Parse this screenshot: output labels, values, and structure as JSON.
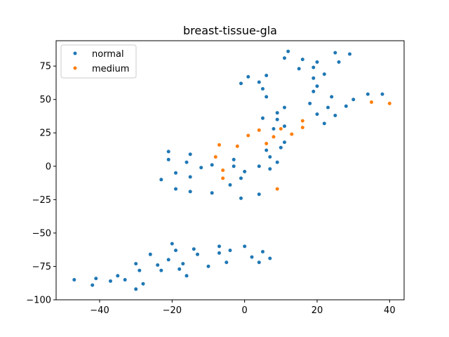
{
  "chart_data": {
    "type": "scatter",
    "title": "breast-tissue-gla",
    "xlabel": "",
    "ylabel": "",
    "xlim": [
      -52,
      44
    ],
    "ylim": [
      -100,
      94
    ],
    "xticks": [
      -40,
      -20,
      0,
      20,
      40
    ],
    "yticks": [
      -100,
      -75,
      -50,
      -25,
      0,
      25,
      50,
      75
    ],
    "grid": false,
    "legend_position": "upper-left",
    "series": [
      {
        "name": "normal",
        "color": "#1f77b4",
        "points": [
          [
            11,
            81
          ],
          [
            12,
            86
          ],
          [
            16,
            80
          ],
          [
            20,
            78
          ],
          [
            15,
            73
          ],
          [
            19,
            74
          ],
          [
            22,
            69
          ],
          [
            26,
            78
          ],
          [
            25,
            85
          ],
          [
            29,
            84
          ],
          [
            19,
            66
          ],
          [
            20,
            60
          ],
          [
            19,
            56
          ],
          [
            24,
            52
          ],
          [
            23,
            44
          ],
          [
            18,
            47
          ],
          [
            20,
            39
          ],
          [
            22,
            32
          ],
          [
            25,
            38
          ],
          [
            28,
            45
          ],
          [
            30,
            50
          ],
          [
            34,
            54
          ],
          [
            38,
            54
          ],
          [
            -1,
            62
          ],
          [
            1,
            67
          ],
          [
            4,
            63
          ],
          [
            5,
            58
          ],
          [
            6,
            68
          ],
          [
            6,
            52
          ],
          [
            11,
            44
          ],
          [
            9,
            40
          ],
          [
            9,
            35
          ],
          [
            11,
            30
          ],
          [
            8,
            28
          ],
          [
            11,
            18
          ],
          [
            10,
            14
          ],
          [
            5,
            36
          ],
          [
            6,
            12
          ],
          [
            -21,
            11
          ],
          [
            -21,
            5
          ],
          [
            -15,
            9
          ],
          [
            -16,
            3
          ],
          [
            -19,
            -5
          ],
          [
            -23,
            -10
          ],
          [
            -15,
            -8
          ],
          [
            -19,
            -17
          ],
          [
            -15,
            -19
          ],
          [
            -12,
            -1
          ],
          [
            -9,
            1
          ],
          [
            -3,
            5
          ],
          [
            -3,
            0
          ],
          [
            0,
            -4
          ],
          [
            -1,
            -9
          ],
          [
            -4,
            -14
          ],
          [
            -9,
            -20
          ],
          [
            -1,
            -24
          ],
          [
            4,
            0
          ],
          [
            7,
            7
          ],
          [
            7,
            -2
          ],
          [
            9,
            3
          ],
          [
            4,
            -21
          ],
          [
            -20,
            -58
          ],
          [
            -19,
            -63
          ],
          [
            -14,
            -62
          ],
          [
            -13,
            -66
          ],
          [
            -7,
            -60
          ],
          [
            -7,
            -65
          ],
          [
            -4,
            -63
          ],
          [
            0,
            -60
          ],
          [
            -5,
            -72
          ],
          [
            -10,
            -75
          ],
          [
            -17,
            -73
          ],
          [
            -18,
            -77
          ],
          [
            -16,
            -82
          ],
          [
            -21,
            -70
          ],
          [
            -23,
            -78
          ],
          [
            -24,
            -74
          ],
          [
            -26,
            -66
          ],
          [
            -30,
            -73
          ],
          [
            -29,
            -78
          ],
          [
            -28,
            -88
          ],
          [
            -30,
            -92
          ],
          [
            -33,
            -85
          ],
          [
            -35,
            -82
          ],
          [
            -37,
            -86
          ],
          [
            -41,
            -84
          ],
          [
            -42,
            -89
          ],
          [
            -47,
            -85
          ],
          [
            2,
            -68
          ],
          [
            4,
            -72
          ],
          [
            5,
            -64
          ],
          [
            7,
            -69
          ]
        ]
      },
      {
        "name": "medium",
        "color": "#ff7f0e",
        "points": [
          [
            -7,
            16
          ],
          [
            -2,
            15
          ],
          [
            1,
            23
          ],
          [
            4,
            27
          ],
          [
            6,
            17
          ],
          [
            8,
            22
          ],
          [
            10,
            28
          ],
          [
            13,
            24
          ],
          [
            16,
            34
          ],
          [
            16,
            29
          ],
          [
            -8,
            7
          ],
          [
            -6,
            -3
          ],
          [
            -6,
            -9
          ],
          [
            9,
            -17
          ],
          [
            35,
            48
          ],
          [
            40,
            47
          ]
        ]
      }
    ]
  }
}
